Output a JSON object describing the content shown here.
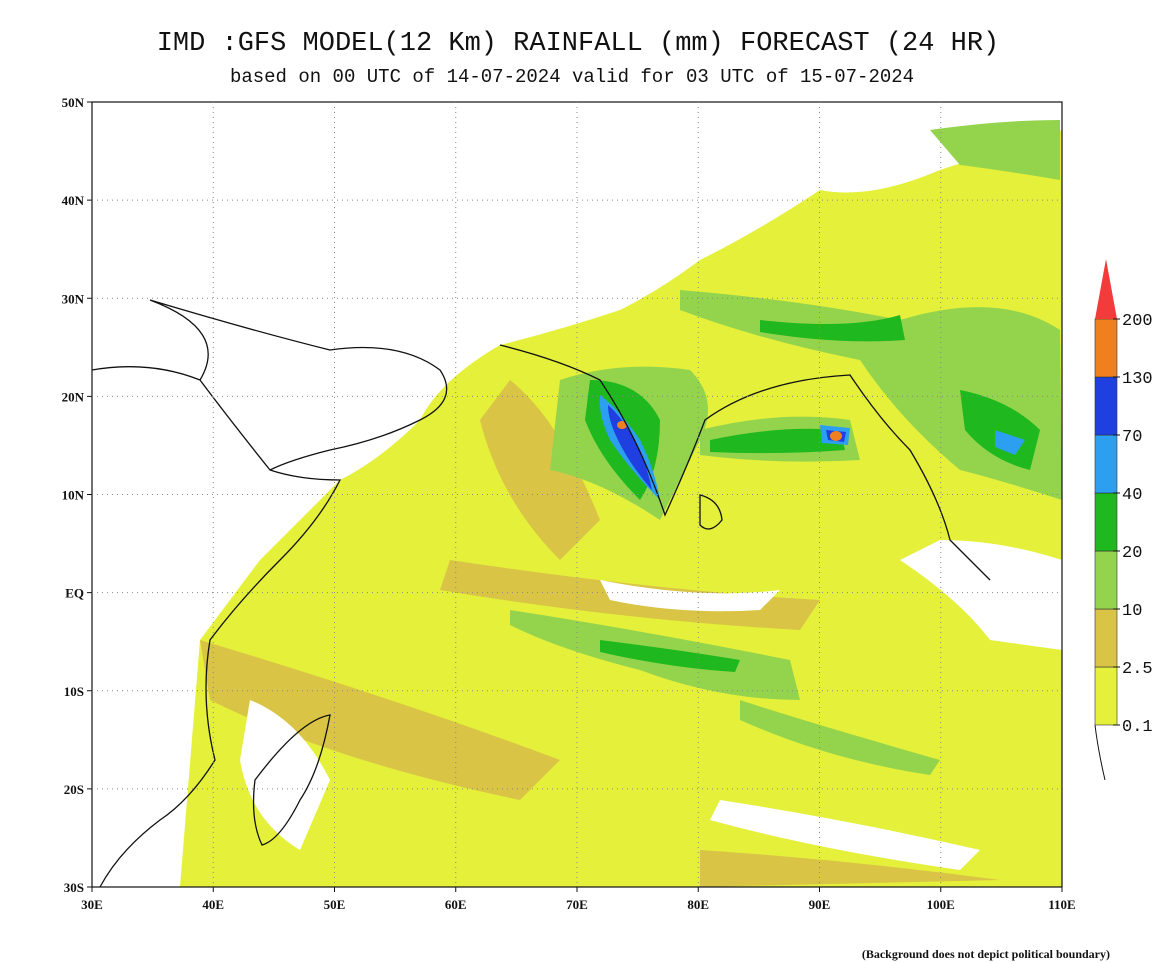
{
  "header": {
    "title": "IMD :GFS MODEL(12 Km) RAINFALL (mm) FORECAST (24 HR)",
    "subtitle": "based on 00 UTC of 14-07-2024 valid for 03 UTC of 15-07-2024"
  },
  "map": {
    "lat_labels": [
      "50N",
      "40N",
      "30N",
      "20N",
      "10N",
      "EQ",
      "10S",
      "20S",
      "30S"
    ],
    "lon_labels": [
      "30E",
      "40E",
      "50E",
      "60E",
      "70E",
      "80E",
      "90E",
      "100E",
      "110E"
    ]
  },
  "legend": {
    "labels": [
      "0.1",
      "2.5",
      "10",
      "20",
      "40",
      "70",
      "130",
      "200"
    ],
    "colors": [
      "#e4f03a",
      "#d9c445",
      "#94d44c",
      "#1fb81f",
      "#2c9ff0",
      "#1f3fe0",
      "#f0801e",
      "#f23c3c"
    ]
  },
  "footnote": "(Background does not depict political boundary)"
}
